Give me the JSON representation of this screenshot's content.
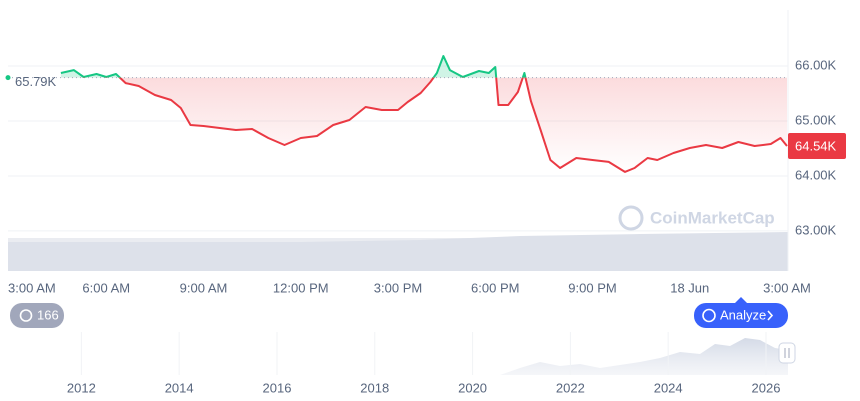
{
  "chart_data": {
    "type": "line",
    "x": [
      1.6,
      2.0,
      2.3,
      2.7,
      3.0,
      3.3,
      3.6,
      4.0,
      4.5,
      5.0,
      5.3,
      5.6,
      6.0,
      6.5,
      7.0,
      7.5,
      8.0,
      8.5,
      9.0,
      9.5,
      10.0,
      10.5,
      11.0,
      11.5,
      12.0,
      12.3,
      12.7,
      13.0,
      13.2,
      13.4,
      13.6,
      14.0,
      14.5,
      14.8,
      15.0,
      15.1,
      15.4,
      15.7,
      15.9,
      16.1,
      16.4,
      16.7,
      17.0,
      17.5,
      18.0,
      18.5,
      19.0,
      19.3,
      19.7,
      20.0,
      20.5,
      21.0,
      21.5,
      22.0,
      22.5,
      23.0,
      23.5,
      23.8,
      24.0
    ],
    "values": [
      65873,
      65927,
      65800,
      65855,
      65800,
      65855,
      65690,
      65636,
      65473,
      65382,
      65236,
      64927,
      64909,
      64873,
      64836,
      64855,
      64691,
      64564,
      64691,
      64727,
      64927,
      65018,
      65255,
      65200,
      65200,
      65345,
      65509,
      65709,
      65873,
      66182,
      65927,
      65800,
      65909,
      65873,
      65982,
      65291,
      65291,
      65527,
      65873,
      65364,
      64836,
      64291,
      64145,
      64327,
      64291,
      64255,
      64073,
      64145,
      64327,
      64291,
      64418,
      64509,
      64564,
      64509,
      64618,
      64545,
      64582,
      64691,
      64545
    ],
    "xlim": [
      0,
      24
    ],
    "xticks": [
      {
        "value": 0,
        "label": "3:00 AM"
      },
      {
        "value": 3,
        "label": "6:00 AM"
      },
      {
        "value": 6,
        "label": "9:00 AM"
      },
      {
        "value": 9,
        "label": "12:00 PM"
      },
      {
        "value": 12,
        "label": "3:00 PM"
      },
      {
        "value": 15,
        "label": "6:00 PM"
      },
      {
        "value": 18,
        "label": "9:00 PM"
      },
      {
        "value": 21,
        "label": "18 Jun"
      },
      {
        "value": 24,
        "label": "3:00 AM"
      }
    ],
    "ylim": [
      62270,
      67020
    ],
    "yticks": [
      {
        "value": 63000,
        "label": "63.00K"
      },
      {
        "value": 64000,
        "label": "64.00K"
      },
      {
        "value": 65000,
        "label": "65.00K"
      },
      {
        "value": 66000,
        "label": "66.00K"
      }
    ],
    "grid": true,
    "up_color": "#16c784",
    "down_color": "#ea3943",
    "baseline": {
      "value": 65790,
      "label": "65.79K"
    },
    "current_price": {
      "value": 64545,
      "label": "64.54K"
    },
    "watermark": "CoinMarketCap",
    "history_badge": "166",
    "analyze_button": "Analyze",
    "navigator": {
      "xlim": [
        2010.5,
        2026.45
      ],
      "xticks": [
        2012,
        2014,
        2016,
        2018,
        2020,
        2022,
        2024,
        2026
      ]
    }
  }
}
